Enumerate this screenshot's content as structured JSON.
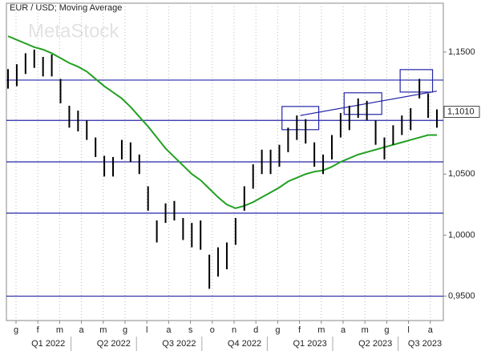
{
  "chart_data": {
    "type": "ohlc",
    "title": "EUR / USD; Moving Average",
    "watermark": "MetaStock",
    "months": [
      "g",
      "f",
      "m",
      "a",
      "m",
      "g",
      "l",
      "a",
      "s",
      "o",
      "n",
      "d",
      "g",
      "f",
      "m",
      "a",
      "m",
      "g",
      "l",
      "a"
    ],
    "quarters": [
      "Q1 2022",
      "Q2 2022",
      "Q3 2022",
      "Q4 2022",
      "Q1 2023",
      "Q2 2023",
      "Q3 2023"
    ],
    "high": [
      1.136,
      1.14,
      1.149,
      1.152,
      1.146,
      1.148,
      1.128,
      1.106,
      1.102,
      1.094,
      1.08,
      1.065,
      1.064,
      1.078,
      1.076,
      1.066,
      1.04,
      1.012,
      1.026,
      1.028,
      1.014,
      1.01,
      1.012,
      0.984,
      0.99,
      0.994,
      1.014,
      1.04,
      1.058,
      1.07,
      1.07,
      1.074,
      1.088,
      1.098,
      1.095,
      1.076,
      1.066,
      1.082,
      1.1,
      1.106,
      1.112,
      1.11,
      1.094,
      1.08,
      1.09,
      1.098,
      1.104,
      1.128,
      1.116,
      1.103
    ],
    "low": [
      1.12,
      1.122,
      1.132,
      1.137,
      1.13,
      1.13,
      1.108,
      1.088,
      1.085,
      1.078,
      1.064,
      1.048,
      1.048,
      1.062,
      1.06,
      1.05,
      1.02,
      0.994,
      1.01,
      1.012,
      0.996,
      0.99,
      0.988,
      0.956,
      0.966,
      0.972,
      0.992,
      1.02,
      1.038,
      1.05,
      1.05,
      1.056,
      1.068,
      1.078,
      1.075,
      1.056,
      1.05,
      1.062,
      1.08,
      1.086,
      1.096,
      1.094,
      1.074,
      1.062,
      1.074,
      1.082,
      1.086,
      1.112,
      1.096,
      1.088
    ],
    "moving_average": {
      "color": "#22a022",
      "values": [
        1.163,
        1.16,
        1.157,
        1.154,
        1.152,
        1.149,
        1.145,
        1.141,
        1.138,
        1.134,
        1.128,
        1.122,
        1.117,
        1.112,
        1.105,
        1.097,
        1.089,
        1.08,
        1.071,
        1.064,
        1.057,
        1.05,
        1.045,
        1.038,
        1.031,
        1.025,
        1.022,
        1.024,
        1.027,
        1.031,
        1.035,
        1.039,
        1.044,
        1.047,
        1.05,
        1.052,
        1.053,
        1.056,
        1.06,
        1.063,
        1.066,
        1.068,
        1.07,
        1.072,
        1.074,
        1.076,
        1.078,
        1.08,
        1.082,
        1.082
      ]
    },
    "levels": [
      1.127,
      1.094,
      1.06,
      1.018,
      0.95
    ],
    "trendline": {
      "from": 33.4,
      "to": 49,
      "values": [
        1.098,
        1.118
      ]
    },
    "boxes": [
      {
        "from": 31.3,
        "to": 35.5,
        "top": 1.1054,
        "bottom": 1.0864
      },
      {
        "from": 38.4,
        "to": 42.7,
        "top": 1.1166,
        "bottom": 1.0989
      },
      {
        "from": 44.8,
        "to": 48.5,
        "top": 1.1356,
        "bottom": 1.1172
      }
    ],
    "last_price": {
      "value": 1.101,
      "label": "1,1010"
    },
    "ylim": [
      0.93,
      1.19
    ],
    "yticks": [
      {
        "value": 1.15,
        "label": "1,1500"
      },
      {
        "value": 1.05,
        "label": "1,0500"
      },
      {
        "value": 1.0,
        "label": "1,0000"
      },
      {
        "value": 0.95,
        "label": "0,9500"
      }
    ],
    "bar_color": "#000000",
    "line_color": "#2626a8"
  }
}
